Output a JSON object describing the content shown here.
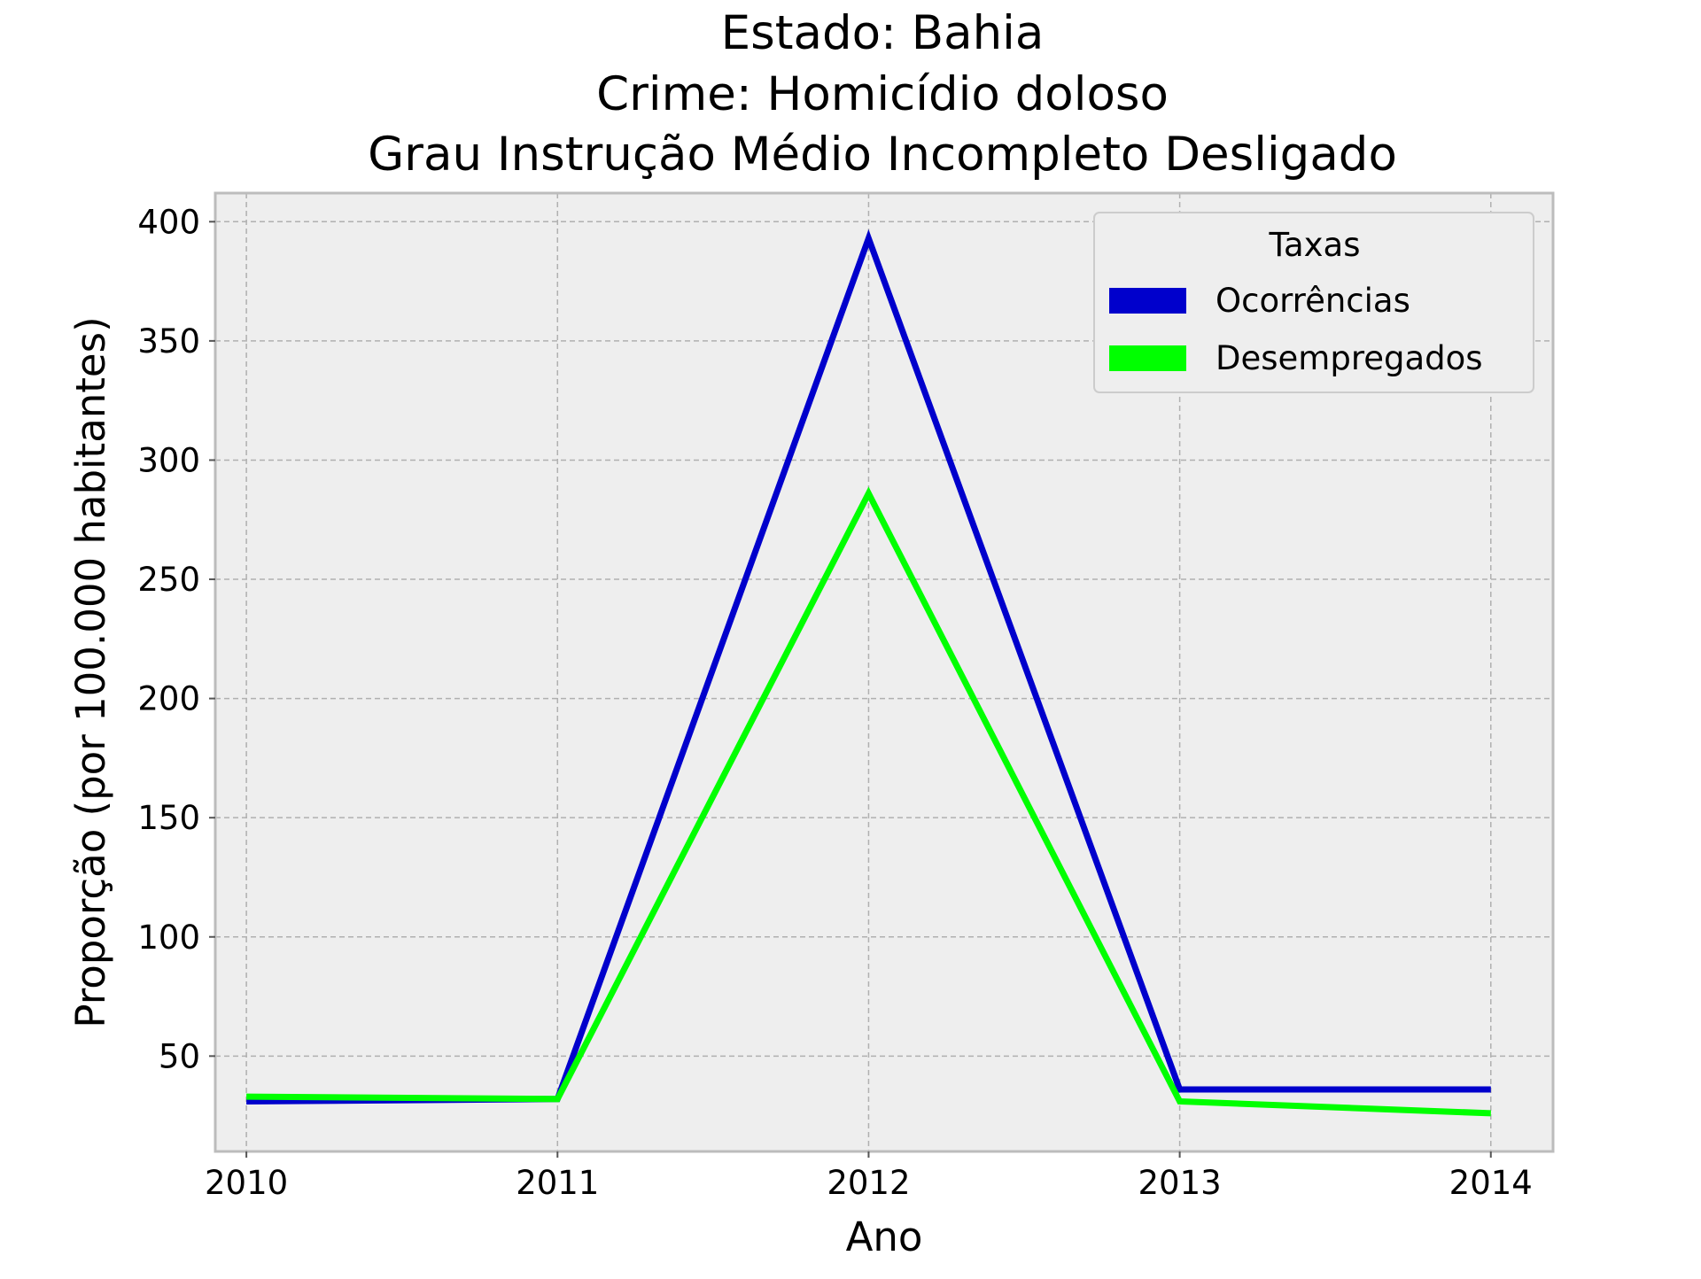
{
  "chart_data": {
    "type": "line",
    "title_lines": [
      "Estado: Bahia",
      "Crime: Homicídio doloso",
      "Grau Instrução  Médio Incompleto   Desligado"
    ],
    "xlabel": "Ano",
    "ylabel": "Proporção (por 100.000 habitantes)",
    "x": [
      2010,
      2011,
      2012,
      2013,
      2014
    ],
    "x_tick_labels": [
      "2010",
      "2011",
      "2012",
      "2013",
      "2014"
    ],
    "y_ticks": [
      50,
      100,
      150,
      200,
      250,
      300,
      350,
      400
    ],
    "y_tick_labels": [
      "50",
      "100",
      "150",
      "200",
      "250",
      "300",
      "350",
      "400"
    ],
    "xlim": [
      2009.9,
      2014.2
    ],
    "ylim": [
      10,
      412
    ],
    "grid": true,
    "legend": {
      "title": "Taxas",
      "placement": "top-right"
    },
    "series": [
      {
        "name": "Ocorrências",
        "color": "#0000cc",
        "values": [
          31,
          32,
          393,
          36,
          36
        ]
      },
      {
        "name": "Desempregados",
        "color": "#00ff00",
        "values": [
          33,
          32,
          286,
          31,
          26
        ]
      }
    ]
  }
}
